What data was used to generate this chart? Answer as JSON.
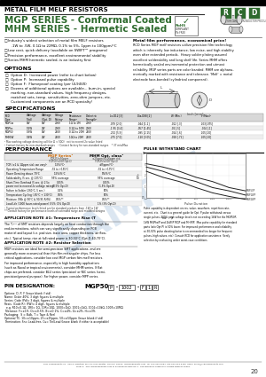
{
  "title_top": "METAL FILM MELF RESISTORS",
  "title_main1": "MGP SERIES - Conformal Coated",
  "title_main2": "MHM SERIES - Hermetic Sealed",
  "bg_color": "#ffffff",
  "green_color": "#2d6a2d",
  "rcd_green": "#2d6a2d",
  "options_title": "OPTIONS",
  "specs_title": "SPECIFICATIONS",
  "perf_title": "PERFORMANCE",
  "pulse_title": "PULSE WITHSTAND CHART",
  "pin_title": "PIN DESIGNATION:",
  "footer": "RCD Components Inc.  520 E Industrial Park Dr Manchester, NH USA 03109  rcdcomponents.com  Tel 603-669-0054  Fax 603-669-5455  Email sales@rcdcomponents.com",
  "footer2": "Form 8   See rcdcomponents.com in accordance with GP-4.  Specifications subject to change without notice.",
  "page_num": "20",
  "watermark_color": "#b0c8e0",
  "note1_title": "APPLICATION NOTE #1: Temperature Rise (T rise)",
  "note2_title": "APPLICATION NOTE #2: Resistor Selection"
}
